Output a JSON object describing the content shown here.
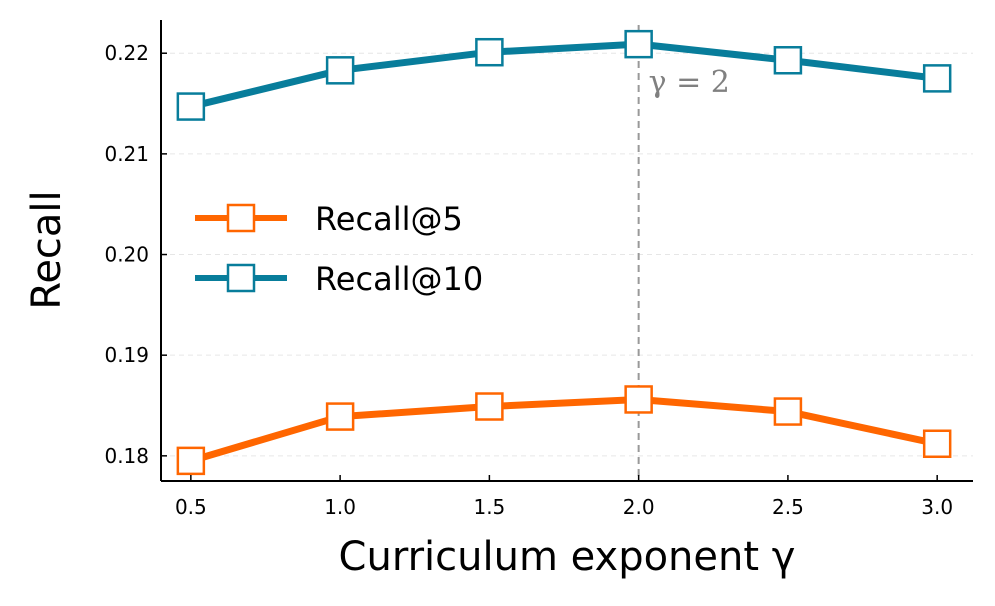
{
  "chart_data": {
    "type": "line",
    "title": "",
    "xlabel": "Curriculum exponent γ",
    "ylabel": "Recall",
    "x": [
      0.5,
      1.0,
      1.5,
      2.0,
      2.5,
      3.0
    ],
    "x_ticks": [
      "0.5",
      "1.0",
      "1.5",
      "2.0",
      "2.5",
      "3.0"
    ],
    "y_ticks": [
      "0.18",
      "0.19",
      "0.20",
      "0.21",
      "0.22"
    ],
    "xlim": [
      0.4,
      3.12
    ],
    "ylim": [
      0.1775,
      0.2233
    ],
    "grid": "horizontal dashed",
    "legend_position": "center-left",
    "series": [
      {
        "name": "Recall@5",
        "color": "#ff6600",
        "marker": "open-square",
        "values": [
          0.1795,
          0.1839,
          0.1849,
          0.1856,
          0.1844,
          0.1812
        ]
      },
      {
        "name": "Recall@10",
        "color": "#087d9b",
        "marker": "open-square",
        "values": [
          0.2147,
          0.2183,
          0.2201,
          0.2209,
          0.2193,
          0.2175
        ]
      }
    ],
    "annotations": [
      {
        "x": 2.0,
        "type": "vertical-dashed-line",
        "color": "#999999",
        "text": "γ = 2"
      }
    ]
  }
}
